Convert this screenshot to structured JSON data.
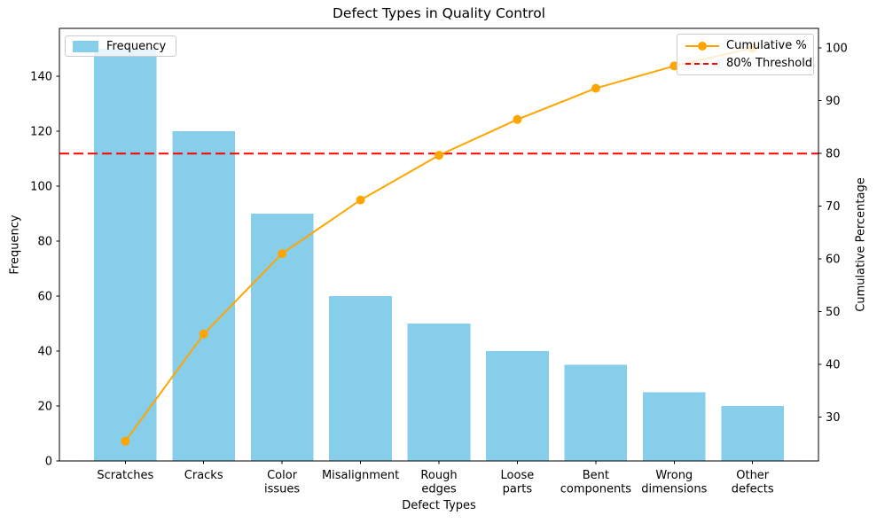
{
  "chart_data": {
    "type": "bar",
    "subtype": "pareto",
    "title": "Defect Types in Quality Control",
    "xlabel": "Defect Types",
    "categories": [
      "Scratches",
      "Cracks",
      "Color issues",
      "Misalignment",
      "Rough edges",
      "Loose parts",
      "Bent components",
      "Wrong dimensions",
      "Other defects"
    ],
    "category_lines": [
      [
        "Scratches"
      ],
      [
        "Cracks"
      ],
      [
        "Color",
        "issues"
      ],
      [
        "Misalignment"
      ],
      [
        "Rough",
        "edges"
      ],
      [
        "Loose",
        "parts"
      ],
      [
        "Bent",
        "components"
      ],
      [
        "Wrong",
        "dimensions"
      ],
      [
        "Other",
        "defects"
      ]
    ],
    "series": [
      {
        "name": "Frequency",
        "kind": "bar",
        "axis": "left",
        "color": "#87CEEB",
        "values": [
          150,
          120,
          90,
          60,
          50,
          40,
          35,
          25,
          20
        ]
      },
      {
        "name": "Cumulative %",
        "kind": "line",
        "axis": "right",
        "color": "#FFA500",
        "marker": "circle",
        "values": [
          25.42,
          45.76,
          61.02,
          71.19,
          79.66,
          86.44,
          92.37,
          96.61,
          100.0
        ]
      }
    ],
    "threshold": {
      "name": "80% Threshold",
      "value": 80,
      "axis": "right",
      "color": "#FF0000",
      "linestyle": "dashed"
    },
    "axis_left": {
      "label": "Frequency",
      "ticks": [
        0,
        20,
        40,
        60,
        80,
        100,
        120,
        140
      ],
      "lim": [
        0,
        157.5
      ]
    },
    "axis_right": {
      "label": "Cumulative Percentage",
      "ticks": [
        30,
        40,
        50,
        60,
        70,
        80,
        90,
        100
      ],
      "lim": [
        21.69,
        103.73
      ]
    },
    "grid": false,
    "legend_left_items": [
      "Frequency"
    ],
    "legend_right_items": [
      "Cumulative %",
      "80% Threshold"
    ],
    "colors": {
      "bar": "#87CEEB",
      "line": "#FFA500",
      "threshold": "#FF0000",
      "spine": "#000000",
      "text": "#000000",
      "legend_border": "#cccccc"
    }
  }
}
